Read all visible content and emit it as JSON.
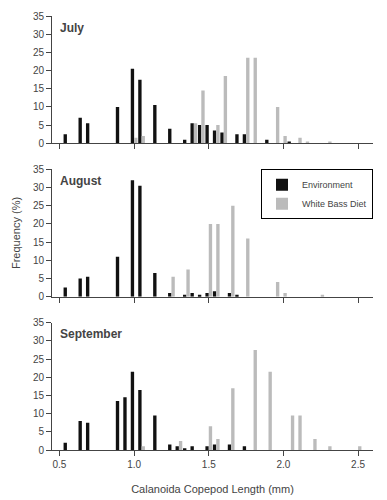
{
  "chart_data": [
    {
      "type": "bar",
      "title": "July",
      "x": [
        0.5,
        0.55,
        0.6,
        0.65,
        0.7,
        0.75,
        0.8,
        0.85,
        0.9,
        0.95,
        1.0,
        1.05,
        1.1,
        1.15,
        1.2,
        1.25,
        1.3,
        1.35,
        1.4,
        1.45,
        1.5,
        1.55,
        1.6,
        1.65,
        1.7,
        1.75,
        1.8,
        1.85,
        1.9,
        1.95,
        2.0,
        2.05,
        2.1,
        2.15,
        2.2,
        2.25,
        2.3,
        2.35,
        2.4,
        2.45,
        2.5
      ],
      "series": [
        {
          "name": "Environment",
          "color": "#111111",
          "values": [
            0,
            2.5,
            0,
            7,
            5.5,
            0,
            0,
            0,
            10,
            0,
            20.5,
            17.5,
            0,
            10.5,
            0,
            4,
            0,
            1,
            5.5,
            5,
            5,
            3.5,
            3,
            0,
            2.5,
            2.5,
            0,
            0,
            1,
            0,
            0,
            0.5,
            0,
            0,
            0,
            0,
            0,
            0,
            0,
            0,
            0
          ]
        },
        {
          "name": "White Bass Diet",
          "color": "#bbbbbb",
          "values": [
            0,
            0,
            0,
            0,
            0,
            0,
            0,
            0,
            0,
            0,
            1.5,
            2,
            0,
            0,
            0,
            0,
            0,
            0,
            5.5,
            14.5,
            0,
            5,
            18.5,
            0,
            0,
            23.5,
            23.5,
            0,
            0,
            10,
            2,
            0,
            1.5,
            0.5,
            0,
            0,
            0.5,
            0,
            0,
            0,
            0
          ]
        }
      ],
      "xlim": [
        0.45,
        2.6
      ],
      "xticks": [
        0.5,
        {
          "value": 1.0,
          "label": "1.0"
        },
        1.5,
        {
          "value": 2.0,
          "label": "2.0"
        },
        2.5
      ],
      "ylim": [
        0,
        35
      ],
      "yticks": [
        0,
        5,
        10,
        15,
        20,
        25,
        30,
        35
      ],
      "grid": false,
      "tick_labels": "y"
    },
    {
      "type": "bar",
      "title": "August",
      "ylabel": "Frequency (%)",
      "x": [
        0.5,
        0.55,
        0.6,
        0.65,
        0.7,
        0.75,
        0.8,
        0.85,
        0.9,
        0.95,
        1.0,
        1.05,
        1.1,
        1.15,
        1.2,
        1.25,
        1.3,
        1.35,
        1.4,
        1.45,
        1.5,
        1.55,
        1.6,
        1.65,
        1.7,
        1.75,
        1.8,
        1.85,
        1.9,
        1.95,
        2.0,
        2.05,
        2.1,
        2.15,
        2.2,
        2.25,
        2.3,
        2.35,
        2.4,
        2.45,
        2.5
      ],
      "series": [
        {
          "name": "Environment",
          "color": "#111111",
          "values": [
            0,
            2.5,
            0,
            5,
            5.5,
            0,
            0,
            0,
            11,
            0,
            32,
            30.5,
            0,
            6.5,
            0,
            1,
            0,
            0.5,
            1,
            0.5,
            1,
            1.5,
            0,
            1,
            0.5,
            0,
            0,
            0,
            0,
            0,
            0,
            0,
            0,
            0,
            0,
            0,
            0,
            0,
            0,
            0,
            0
          ]
        },
        {
          "name": "White Bass Diet",
          "color": "#bbbbbb",
          "values": [
            0,
            0,
            0,
            0,
            0,
            0,
            0,
            0,
            0,
            0,
            0,
            0,
            0,
            0,
            0,
            5.5,
            0,
            7.5,
            0,
            0,
            20,
            20,
            0,
            25,
            0,
            16,
            0,
            0,
            0,
            4,
            1,
            0,
            0,
            0,
            0,
            0.5,
            0,
            0,
            0,
            0,
            0
          ]
        }
      ],
      "xlim": [
        0.45,
        2.6
      ],
      "xticks": [
        0.5,
        {
          "value": 1.0,
          "label": "1.0"
        },
        1.5,
        {
          "value": 2.0,
          "label": "2.0"
        },
        2.5
      ],
      "ylim": [
        0,
        35
      ],
      "yticks": [
        0,
        5,
        10,
        15,
        20,
        25,
        30,
        35
      ],
      "grid": false,
      "tick_labels": "y",
      "legend": "upper right"
    },
    {
      "type": "bar",
      "title": "September",
      "xlabel": "Calanoida Copepod Length (mm)",
      "x": [
        0.5,
        0.55,
        0.6,
        0.65,
        0.7,
        0.75,
        0.8,
        0.85,
        0.9,
        0.95,
        1.0,
        1.05,
        1.1,
        1.15,
        1.2,
        1.25,
        1.3,
        1.35,
        1.4,
        1.45,
        1.5,
        1.55,
        1.6,
        1.65,
        1.7,
        1.75,
        1.8,
        1.85,
        1.9,
        1.95,
        2.0,
        2.05,
        2.1,
        2.15,
        2.2,
        2.25,
        2.3,
        2.35,
        2.4,
        2.45,
        2.5
      ],
      "series": [
        {
          "name": "Environment",
          "color": "#111111",
          "values": [
            0,
            2,
            0,
            8,
            7.5,
            0,
            0,
            0,
            13.5,
            14.5,
            21.5,
            16.5,
            0,
            9.5,
            0,
            1.5,
            1,
            0.5,
            1,
            0,
            1,
            1.5,
            0,
            1.5,
            0,
            1,
            0,
            0,
            0,
            0,
            0,
            0,
            0,
            0,
            0,
            0,
            0,
            0,
            0,
            0,
            0
          ]
        },
        {
          "name": "White Bass Diet",
          "color": "#bbbbbb",
          "values": [
            0,
            0,
            0,
            0,
            0,
            0,
            0,
            0,
            0,
            0,
            0,
            1,
            0,
            0,
            0,
            0,
            2.5,
            0,
            0,
            0,
            6.5,
            3,
            0,
            17,
            0,
            0,
            27.5,
            0,
            21.5,
            0,
            0,
            9.5,
            9.5,
            0,
            3,
            0,
            1,
            0,
            0,
            0,
            1
          ]
        }
      ],
      "xlim": [
        0.45,
        2.6
      ],
      "xticks": [
        0.5,
        {
          "value": 1.0,
          "label": "1.0"
        },
        1.5,
        {
          "value": 2.0,
          "label": "2.0"
        },
        2.5
      ],
      "ylim": [
        0,
        35
      ],
      "yticks": [
        0,
        5,
        10,
        15,
        20,
        25,
        30,
        35
      ],
      "grid": false
    }
  ]
}
